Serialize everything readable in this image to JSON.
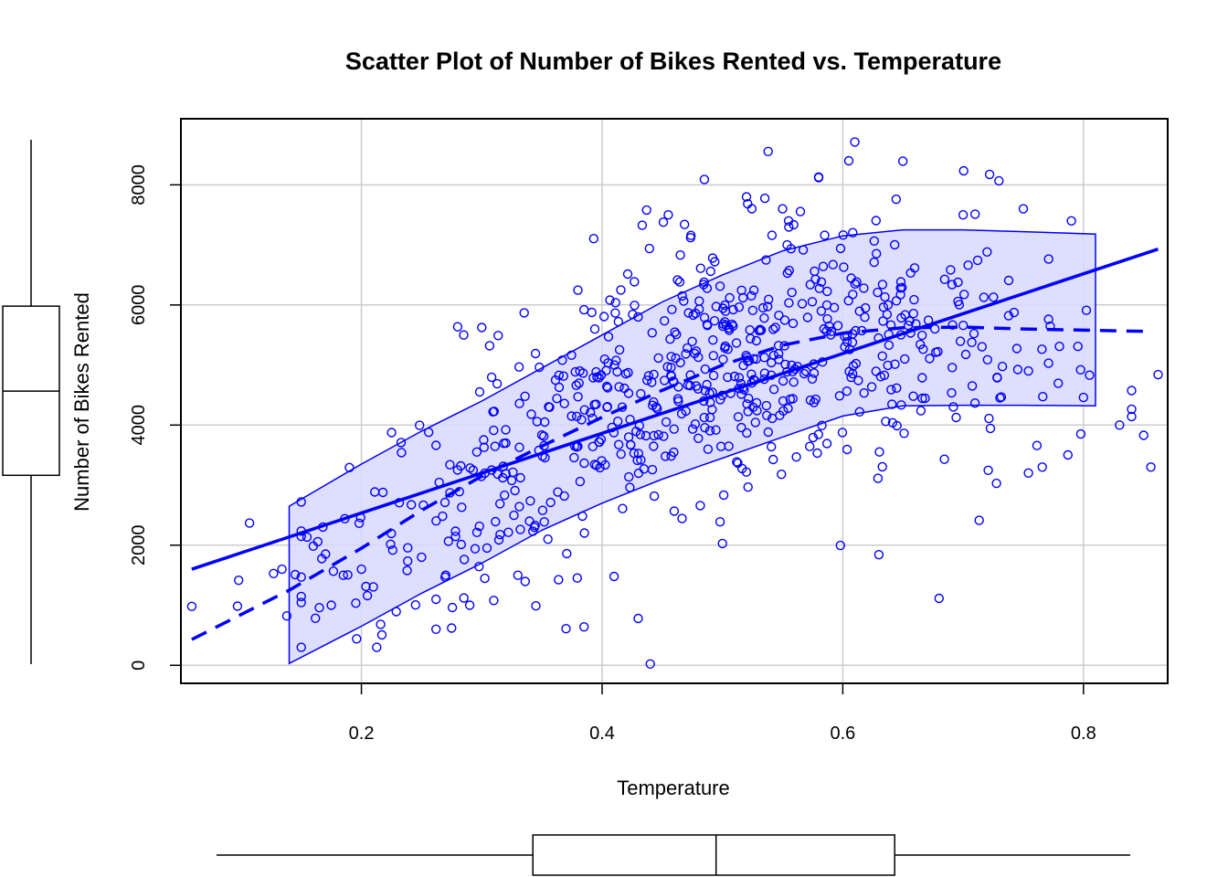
{
  "chart_data": {
    "type": "scatter",
    "title": "Scatter Plot of Number of Bikes Rented vs. Temperature",
    "xlabel": "Temperature",
    "ylabel": "Number of Bikes Rented",
    "xlim": [
      0.05,
      0.87
    ],
    "ylim": [
      -300,
      9100
    ],
    "x_ticks": [
      0.2,
      0.4,
      0.6,
      0.8
    ],
    "x_tick_labels": [
      "0.2",
      "0.4",
      "0.6",
      "0.8"
    ],
    "y_ticks": [
      0,
      2000,
      4000,
      6000,
      8000
    ],
    "y_tick_labels": [
      "0",
      "2000",
      "4000",
      "6000",
      "8000"
    ],
    "grid": true,
    "colors": {
      "points": "#0000ff",
      "lines": "#0000ff",
      "band": "#d8d8ff",
      "grid": "#cccccc"
    },
    "point_count": 731,
    "regression_line": {
      "x": [
        0.059,
        0.862
      ],
      "y": [
        1600,
        6930
      ]
    },
    "smooth_line": {
      "x": [
        0.059,
        0.14,
        0.2,
        0.25,
        0.3,
        0.35,
        0.4,
        0.45,
        0.5,
        0.55,
        0.6,
        0.65,
        0.7,
        0.75,
        0.8,
        0.85
      ],
      "y": [
        430,
        1250,
        1950,
        2580,
        3150,
        3650,
        4130,
        4580,
        5000,
        5330,
        5530,
        5620,
        5630,
        5600,
        5580,
        5560
      ]
    },
    "confidence_band": {
      "x": [
        0.14,
        0.2,
        0.25,
        0.3,
        0.35,
        0.4,
        0.45,
        0.5,
        0.55,
        0.6,
        0.65,
        0.7,
        0.75,
        0.81
      ],
      "upper": [
        2650,
        3350,
        3900,
        4400,
        4950,
        5500,
        6050,
        6500,
        6900,
        7150,
        7250,
        7250,
        7220,
        7180
      ],
      "lower": [
        30,
        650,
        1200,
        1700,
        2250,
        2700,
        3100,
        3450,
        3800,
        4150,
        4320,
        4330,
        4330,
        4320
      ]
    },
    "x_boxplot": {
      "whisker_low": 0.059,
      "q1": 0.337,
      "median": 0.498,
      "q3": 0.655,
      "whisker_high": 0.862
    },
    "y_boxplot": {
      "whisker_low": 22,
      "q1": 3152,
      "median": 4548,
      "q3": 5956,
      "whisker_high": 8714
    },
    "series": [
      {
        "points": [
          [
            0.059,
            981
          ],
          [
            0.097,
            986
          ],
          [
            0.098,
            1416
          ],
          [
            0.107,
            2368
          ],
          [
            0.127,
            1529
          ],
          [
            0.134,
            1600
          ],
          [
            0.138,
            822
          ],
          [
            0.145,
            1510
          ],
          [
            0.15,
            2236
          ],
          [
            0.16,
            1985
          ],
          [
            0.165,
            959
          ],
          [
            0.168,
            2302
          ],
          [
            0.175,
            1000
          ],
          [
            0.185,
            1500
          ],
          [
            0.19,
            3292
          ],
          [
            0.196,
            441
          ],
          [
            0.2,
            1600
          ],
          [
            0.205,
            1160
          ],
          [
            0.216,
            683
          ],
          [
            0.217,
            506
          ],
          [
            0.226,
            1917
          ],
          [
            0.245,
            1005
          ],
          [
            0.25,
            1800
          ],
          [
            0.262,
            1100
          ],
          [
            0.27,
            1500
          ],
          [
            0.275,
            620
          ],
          [
            0.28,
            5636
          ],
          [
            0.285,
            5500
          ],
          [
            0.29,
            1000
          ],
          [
            0.3,
            5624
          ],
          [
            0.31,
            1080
          ],
          [
            0.32,
            3700
          ],
          [
            0.33,
            1500
          ],
          [
            0.345,
            990
          ],
          [
            0.355,
            2100
          ],
          [
            0.37,
            610
          ],
          [
            0.385,
            640
          ],
          [
            0.393,
            7104
          ],
          [
            0.41,
            1480
          ],
          [
            0.43,
            780
          ],
          [
            0.437,
            7580
          ],
          [
            0.44,
            22
          ],
          [
            0.455,
            7500
          ],
          [
            0.465,
            6830
          ],
          [
            0.485,
            8090
          ],
          [
            0.5,
            2029
          ],
          [
            0.52,
            7800
          ],
          [
            0.538,
            8555
          ],
          [
            0.55,
            7600
          ],
          [
            0.555,
            7400
          ],
          [
            0.58,
            8120
          ],
          [
            0.598,
            1996
          ],
          [
            0.605,
            8400
          ],
          [
            0.61,
            8714
          ],
          [
            0.63,
            1842
          ],
          [
            0.65,
            8395
          ],
          [
            0.68,
            1115
          ],
          [
            0.7,
            7500
          ],
          [
            0.722,
            8173
          ],
          [
            0.75,
            7600
          ],
          [
            0.79,
            7400
          ],
          [
            0.8,
            4460
          ],
          [
            0.83,
            4000
          ],
          [
            0.85,
            3830
          ],
          [
            0.856,
            3300
          ],
          [
            0.862,
            4840
          ]
        ]
      }
    ]
  }
}
